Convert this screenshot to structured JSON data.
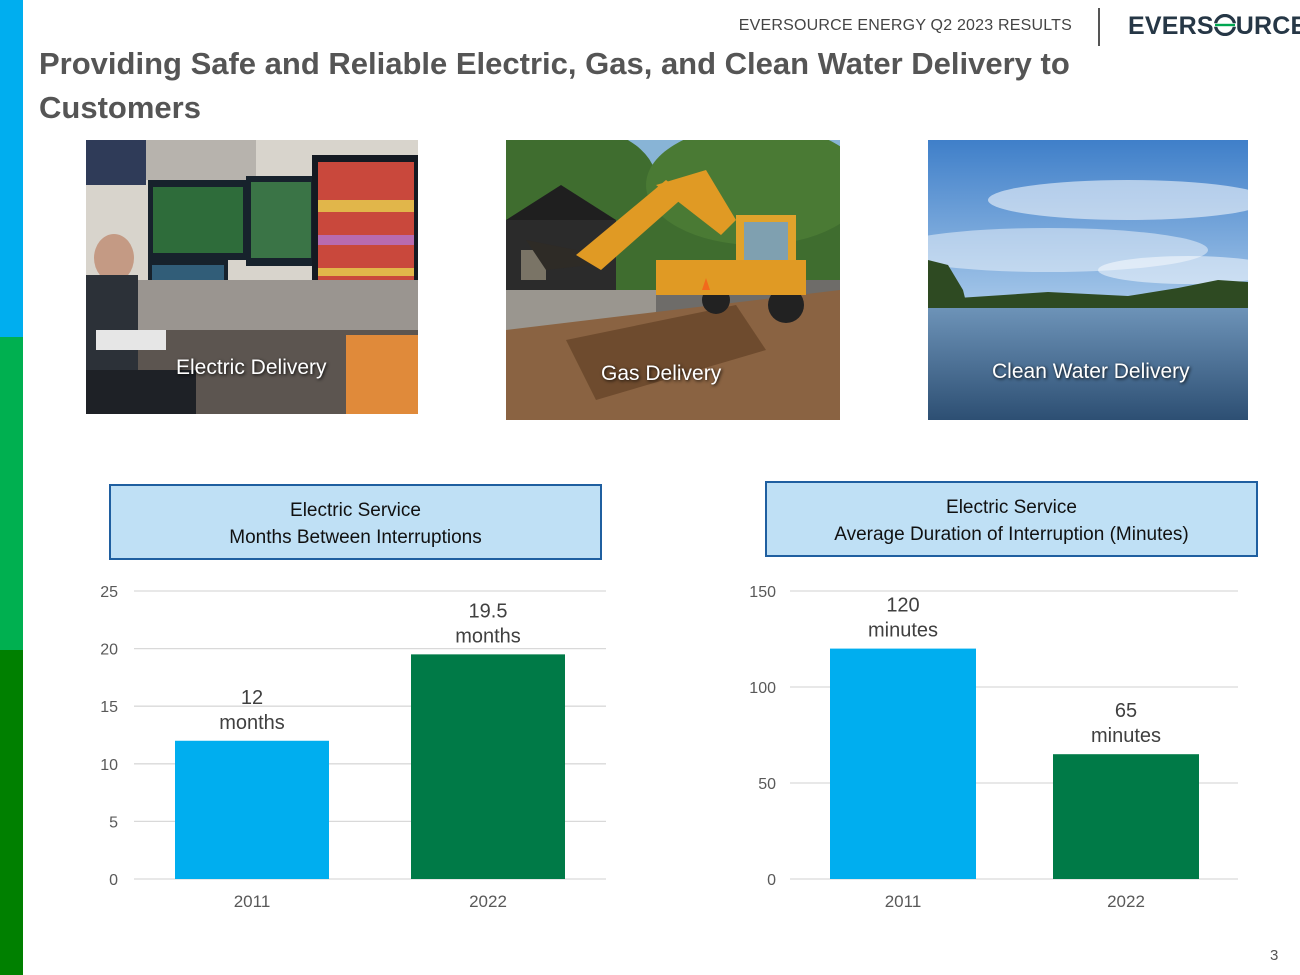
{
  "header": {
    "report_title": "EVERSOURCE ENERGY Q2 2023 RESULTS",
    "logo_text_before": "EVERS",
    "logo_text_after": "URCE"
  },
  "title": "Providing Safe and Reliable Electric, Gas, and Clean Water Delivery to Customers",
  "photos": [
    {
      "label": "Electric Delivery"
    },
    {
      "label": "Gas Delivery"
    },
    {
      "label": "Clean Water Delivery"
    }
  ],
  "colors": {
    "bar_2011": "#00aeef",
    "bar_2022": "#007a47",
    "box_fill": "#bfe0f5",
    "box_border": "#1f5fa0"
  },
  "chart_data": [
    {
      "type": "bar",
      "title_line1": "Electric Service",
      "title_line2": "Months Between Interruptions",
      "categories": [
        "2011",
        "2022"
      ],
      "values": [
        12,
        19.5
      ],
      "value_labels": [
        "12",
        "19.5"
      ],
      "unit_label": "months",
      "ylim": [
        0,
        25
      ],
      "yticks": [
        0,
        5,
        10,
        15,
        20,
        25
      ],
      "grid": true
    },
    {
      "type": "bar",
      "title_line1": "Electric Service",
      "title_line2": "Average Duration of Interruption (Minutes)",
      "categories": [
        "2011",
        "2022"
      ],
      "values": [
        120,
        65
      ],
      "value_labels": [
        "120",
        "65"
      ],
      "unit_label": "minutes",
      "ylim": [
        0,
        150
      ],
      "yticks": [
        0,
        50,
        100,
        150
      ],
      "grid": true
    }
  ],
  "page_number": "3"
}
